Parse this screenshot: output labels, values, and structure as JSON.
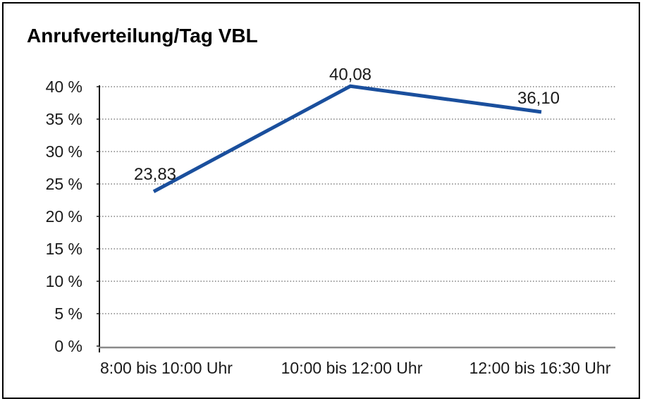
{
  "chart_data": {
    "type": "line",
    "title": "Anrufverteilung/Tag VBL",
    "categories": [
      "8:00 bis 10:00 Uhr",
      "10:00 bis 12:00 Uhr",
      "12:00 bis 16:30 Uhr"
    ],
    "values": [
      23.83,
      40.08,
      36.1
    ],
    "value_labels": [
      "23,83",
      "40,08",
      "36,10"
    ],
    "xlabel": "",
    "ylabel": "",
    "ylim": [
      0,
      40
    ],
    "ytick_step": 5,
    "ytick_labels": [
      "0 %",
      "5 %",
      "10 %",
      "15 %",
      "20 %",
      "25 %",
      "30 %",
      "35 %",
      "40 %"
    ],
    "grid": "horizontal-dotted",
    "legend": "none",
    "line_color": "#1A4F9D",
    "text_color": "#1a1a1a",
    "grid_color": "#3c3c3c",
    "y_axis_color": "#1a1a1a",
    "x_axis_color": "#8a8a8a",
    "frame_border_color": "#000000",
    "background": "#ffffff"
  }
}
